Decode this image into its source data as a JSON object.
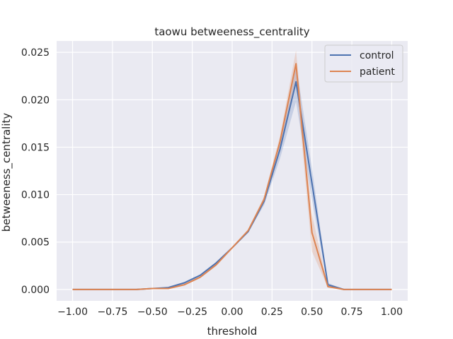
{
  "chart_data": {
    "type": "line",
    "title": "taowu betweeness_centrality",
    "xlabel": "threshold",
    "ylabel": "betweeness_centrality",
    "xlim": [
      -1.1,
      1.1
    ],
    "ylim": [
      -0.0012,
      0.0262
    ],
    "xticks": [
      -1.0,
      -0.75,
      -0.5,
      -0.25,
      0.0,
      0.25,
      0.5,
      0.75,
      1.0
    ],
    "xtick_labels": [
      "−1.00",
      "−0.75",
      "−0.50",
      "−0.25",
      "0.00",
      "0.25",
      "0.50",
      "0.75",
      "1.00"
    ],
    "yticks": [
      0.0,
      0.005,
      0.01,
      0.015,
      0.02,
      0.025
    ],
    "ytick_labels": [
      "0.000",
      "0.005",
      "0.010",
      "0.015",
      "0.020",
      "0.025"
    ],
    "grid": true,
    "legend_position": "upper right",
    "x": [
      -1.0,
      -0.9,
      -0.8,
      -0.7,
      -0.6,
      -0.5,
      -0.4,
      -0.3,
      -0.2,
      -0.1,
      0.0,
      0.1,
      0.2,
      0.3,
      0.4,
      0.5,
      0.6,
      0.7,
      0.8,
      0.9,
      1.0
    ],
    "series": [
      {
        "name": "control",
        "color": "#4c72b0",
        "values": [
          0.0,
          0.0,
          0.0,
          0.0,
          0.0,
          0.0001,
          0.0002,
          0.0007,
          0.0015,
          0.0028,
          0.0044,
          0.0061,
          0.0093,
          0.0148,
          0.0219,
          0.0112,
          0.0005,
          0.0,
          0.0,
          0.0,
          0.0
        ],
        "band_low": [
          0.0,
          0.0,
          0.0,
          0.0,
          0.0,
          0.0001,
          0.0002,
          0.0006,
          0.0014,
          0.0027,
          0.0043,
          0.006,
          0.0089,
          0.0138,
          0.0198,
          0.0095,
          0.0003,
          0.0,
          0.0,
          0.0,
          0.0
        ],
        "band_high": [
          0.0,
          0.0,
          0.0,
          0.0,
          0.0,
          0.0001,
          0.0003,
          0.0008,
          0.0016,
          0.0029,
          0.0045,
          0.0062,
          0.0097,
          0.0158,
          0.0238,
          0.0128,
          0.0007,
          0.0,
          0.0,
          0.0,
          0.0
        ]
      },
      {
        "name": "patient",
        "color": "#dd8452",
        "values": [
          0.0,
          0.0,
          0.0,
          0.0,
          0.0,
          0.0001,
          0.0001,
          0.0005,
          0.0013,
          0.0026,
          0.0044,
          0.0062,
          0.0095,
          0.0156,
          0.0238,
          0.006,
          0.0003,
          0.0,
          0.0,
          0.0,
          0.0
        ],
        "band_low": [
          0.0,
          0.0,
          0.0,
          0.0,
          0.0,
          0.0001,
          0.0001,
          0.0004,
          0.0012,
          0.0025,
          0.0043,
          0.0061,
          0.0092,
          0.015,
          0.0222,
          0.004,
          0.0002,
          0.0,
          0.0,
          0.0,
          0.0
        ],
        "band_high": [
          0.0,
          0.0,
          0.0,
          0.0,
          0.0,
          0.0001,
          0.0002,
          0.0006,
          0.0014,
          0.0027,
          0.0045,
          0.0063,
          0.0098,
          0.0162,
          0.0252,
          0.0079,
          0.0004,
          0.0,
          0.0,
          0.0,
          0.0
        ]
      }
    ]
  }
}
